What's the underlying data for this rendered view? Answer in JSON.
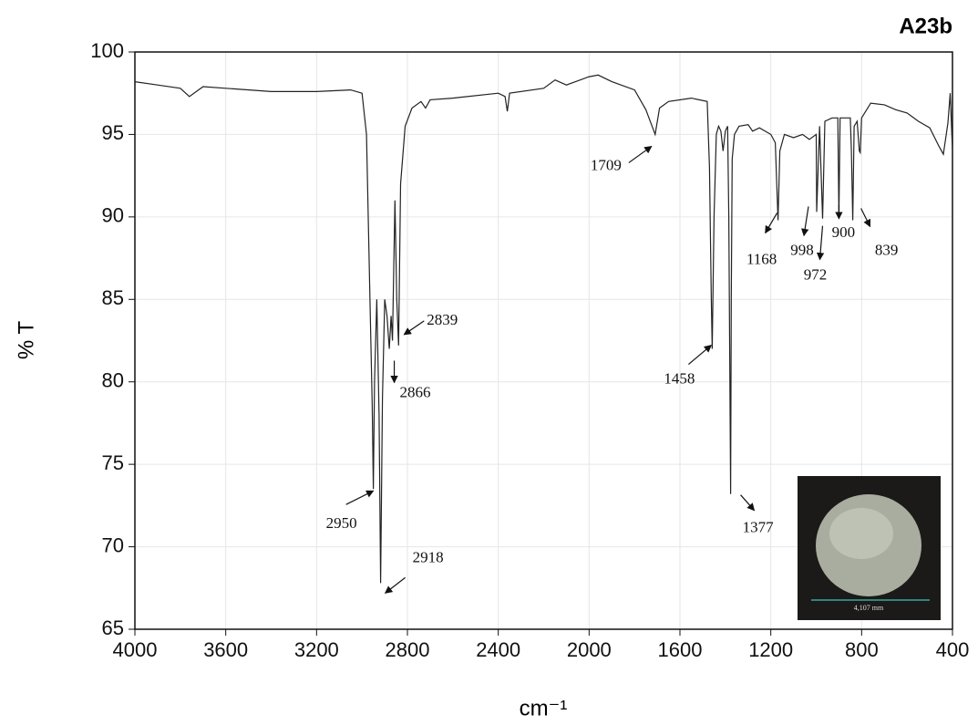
{
  "chart_data": {
    "type": "line",
    "title": "A23b",
    "xlabel": "cm⁻¹",
    "ylabel": "% T",
    "x": [
      4000,
      3900,
      3800,
      3760,
      3700,
      3600,
      3400,
      3200,
      3050,
      3000,
      2980,
      2965,
      2955,
      2950,
      2945,
      2935,
      2925,
      2918,
      2910,
      2900,
      2890,
      2880,
      2872,
      2866,
      2855,
      2847,
      2839,
      2830,
      2810,
      2780,
      2740,
      2720,
      2700,
      2600,
      2400,
      2370,
      2360,
      2350,
      2200,
      2150,
      2100,
      2000,
      1960,
      1900,
      1800,
      1750,
      1720,
      1709,
      1690,
      1650,
      1550,
      1480,
      1470,
      1462,
      1458,
      1450,
      1440,
      1430,
      1420,
      1410,
      1400,
      1390,
      1385,
      1380,
      1377,
      1374,
      1370,
      1360,
      1340,
      1300,
      1280,
      1250,
      1200,
      1180,
      1168,
      1160,
      1140,
      1100,
      1060,
      1030,
      1000,
      998,
      985,
      972,
      962,
      930,
      905,
      900,
      895,
      850,
      845,
      839,
      833,
      820,
      810,
      806,
      800,
      760,
      700,
      650,
      600,
      550,
      500,
      460,
      440,
      420,
      410,
      400
    ],
    "values": [
      98.2,
      98.0,
      97.8,
      97.3,
      97.9,
      97.8,
      97.6,
      97.6,
      97.7,
      97.5,
      95,
      85,
      78.5,
      73.5,
      80,
      85,
      78,
      67.8,
      79,
      85,
      84,
      82,
      84,
      82.5,
      91,
      85,
      82.2,
      92,
      95.5,
      96.6,
      97.0,
      96.6,
      97.1,
      97.2,
      97.5,
      97.3,
      96.4,
      97.5,
      97.8,
      98.3,
      98.0,
      98.5,
      98.6,
      98.2,
      97.7,
      96.5,
      95.4,
      95.0,
      96.6,
      97.0,
      97.2,
      97.0,
      93,
      85,
      82.0,
      90,
      95,
      95.5,
      95.2,
      94,
      95.2,
      95.5,
      90,
      80,
      73.2,
      85,
      93.5,
      95,
      95.5,
      95.6,
      95.2,
      95.4,
      95,
      94.5,
      89.8,
      94,
      95.0,
      94.8,
      95.0,
      94.7,
      95.0,
      90.3,
      95.5,
      89.9,
      95.8,
      96.0,
      96.0,
      90.0,
      96.0,
      96.0,
      94,
      89.8,
      95.5,
      95.8,
      94,
      93.9,
      96,
      96.9,
      96.8,
      96.5,
      96.3,
      95.8,
      95.4,
      94.3,
      93.8,
      95.7,
      97.5,
      94
    ],
    "color": "#222222",
    "xlim": [
      4000,
      400
    ],
    "xticks": [
      4000,
      3600,
      3200,
      2800,
      2400,
      2000,
      1600,
      1200,
      800,
      400
    ],
    "ylim": [
      65,
      100
    ],
    "yticks": [
      65,
      70,
      75,
      80,
      85,
      90,
      95,
      100
    ],
    "grid": true,
    "annotations": [
      {
        "text": "2950",
        "x": 2950,
        "y": 73.5
      },
      {
        "text": "2918",
        "x": 2918,
        "y": 67.8
      },
      {
        "text": "2866",
        "x": 2866,
        "y": 82.5
      },
      {
        "text": "2839",
        "x": 2839,
        "y": 82.2
      },
      {
        "text": "1709",
        "x": 1709,
        "y": 95.0
      },
      {
        "text": "1458",
        "x": 1458,
        "y": 82.0
      },
      {
        "text": "1377",
        "x": 1377,
        "y": 73.2
      },
      {
        "text": "1168",
        "x": 1168,
        "y": 89.8
      },
      {
        "text": "998",
        "x": 998,
        "y": 90.3
      },
      {
        "text": "972",
        "x": 972,
        "y": 89.9
      },
      {
        "text": "900",
        "x": 900,
        "y": 90.0
      },
      {
        "text": "839",
        "x": 839,
        "y": 89.8
      }
    ],
    "inset_scale_label": "4,107 mm"
  }
}
